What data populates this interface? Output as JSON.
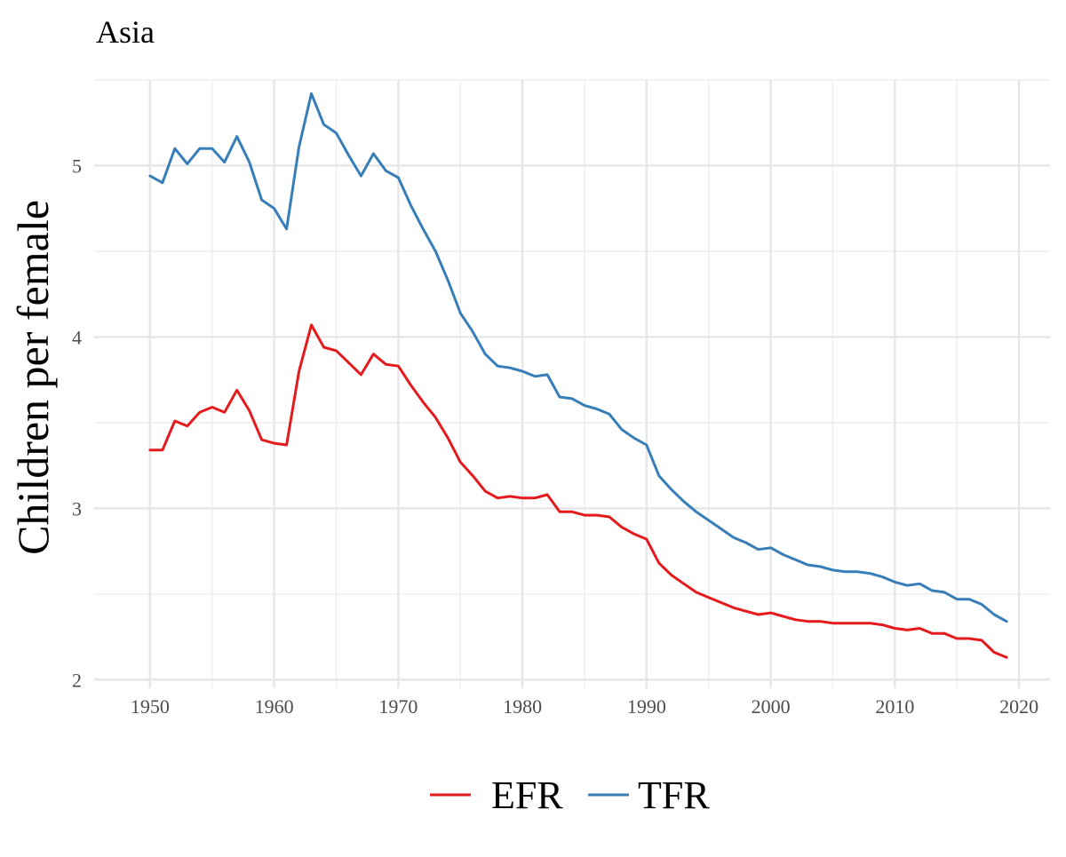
{
  "chart_data": {
    "type": "line",
    "title": "Asia",
    "xlabel": "",
    "ylabel": "Children per female",
    "xlim": [
      1945.5,
      2022.5
    ],
    "ylim": [
      1.95,
      5.5
    ],
    "xticks": [
      1950,
      1960,
      1970,
      1980,
      1990,
      2000,
      2010,
      2020
    ],
    "yticks": [
      2,
      3,
      4,
      5
    ],
    "grid": true,
    "legend_position": "bottom",
    "x": [
      1950,
      1951,
      1952,
      1953,
      1954,
      1955,
      1956,
      1957,
      1958,
      1959,
      1960,
      1961,
      1962,
      1963,
      1964,
      1965,
      1966,
      1967,
      1968,
      1969,
      1970,
      1971,
      1972,
      1973,
      1974,
      1975,
      1976,
      1977,
      1978,
      1979,
      1980,
      1981,
      1982,
      1983,
      1984,
      1985,
      1986,
      1987,
      1988,
      1989,
      1990,
      1991,
      1992,
      1993,
      1994,
      1995,
      1996,
      1997,
      1998,
      1999,
      2000,
      2001,
      2002,
      2003,
      2004,
      2005,
      2006,
      2007,
      2008,
      2009,
      2010,
      2011,
      2012,
      2013,
      2014,
      2015,
      2016,
      2017,
      2018,
      2019
    ],
    "series": [
      {
        "name": "EFR",
        "color": "#e41a1c",
        "values": [
          3.34,
          3.34,
          3.51,
          3.48,
          3.56,
          3.59,
          3.56,
          3.69,
          3.57,
          3.4,
          3.38,
          3.37,
          3.8,
          4.07,
          3.94,
          3.92,
          3.85,
          3.78,
          3.9,
          3.84,
          3.83,
          3.72,
          3.62,
          3.53,
          3.41,
          3.27,
          3.19,
          3.1,
          3.06,
          3.07,
          3.06,
          3.06,
          3.08,
          2.98,
          2.98,
          2.96,
          2.96,
          2.95,
          2.89,
          2.85,
          2.82,
          2.68,
          2.61,
          2.56,
          2.51,
          2.48,
          2.45,
          2.42,
          2.4,
          2.38,
          2.39,
          2.37,
          2.35,
          2.34,
          2.34,
          2.33,
          2.33,
          2.33,
          2.33,
          2.32,
          2.3,
          2.29,
          2.3,
          2.27,
          2.27,
          2.24,
          2.24,
          2.23,
          2.16,
          2.13
        ]
      },
      {
        "name": "TFR",
        "color": "#377eb8",
        "values": [
          4.94,
          4.9,
          5.1,
          5.01,
          5.1,
          5.1,
          5.02,
          5.17,
          5.02,
          4.8,
          4.75,
          4.63,
          5.11,
          5.42,
          5.24,
          5.19,
          5.06,
          4.94,
          5.07,
          4.97,
          4.93,
          4.77,
          4.63,
          4.5,
          4.33,
          4.14,
          4.03,
          3.9,
          3.83,
          3.82,
          3.8,
          3.77,
          3.78,
          3.65,
          3.64,
          3.6,
          3.58,
          3.55,
          3.46,
          3.41,
          3.37,
          3.19,
          3.11,
          3.04,
          2.98,
          2.93,
          2.88,
          2.83,
          2.8,
          2.76,
          2.77,
          2.73,
          2.7,
          2.67,
          2.66,
          2.64,
          2.63,
          2.63,
          2.62,
          2.6,
          2.57,
          2.55,
          2.56,
          2.52,
          2.51,
          2.47,
          2.47,
          2.44,
          2.38,
          2.34
        ]
      }
    ]
  }
}
